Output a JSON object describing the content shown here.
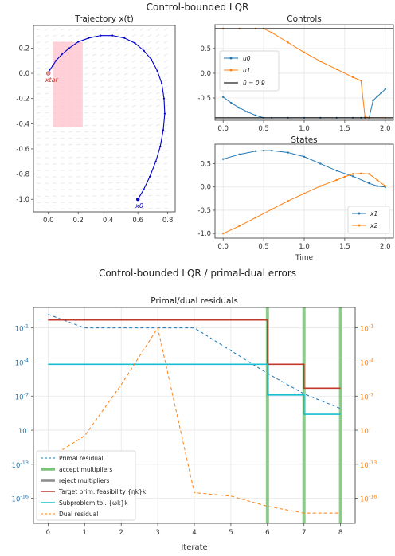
{
  "figure1": {
    "suptitle": "Control-bounded LQR",
    "traj": {
      "title": "Trajectory x(t)",
      "xlim": [
        -0.1,
        0.85
      ],
      "ylim": [
        -1.1,
        0.38
      ],
      "xticks": [
        0.0,
        0.2,
        0.4,
        0.6,
        0.8
      ],
      "yticks": [
        0.2,
        0.0,
        -0.2,
        -0.4,
        -0.6,
        -0.8,
        -1.0
      ],
      "x0_label": "x0",
      "xtar_label": "xtar",
      "start": [
        0.6,
        -1.0
      ],
      "target": [
        0.0,
        0.0
      ],
      "rect": {
        "x": [
          0.03,
          0.23
        ],
        "y": [
          -0.43,
          0.25
        ]
      },
      "line_color": "#0000cc"
    },
    "controls": {
      "title": "Controls",
      "xlim": [
        -0.1,
        2.1
      ],
      "ylim": [
        -0.95,
        0.98
      ],
      "xticks": [
        0.0,
        0.5,
        1.0,
        1.5,
        2.0
      ],
      "yticks": [
        0.5,
        0.0,
        -0.5
      ],
      "bound": 0.9,
      "legend": [
        "u0",
        "u1",
        "ū = 0.9"
      ]
    },
    "states": {
      "title": "States",
      "xlabel": "Time",
      "xlim": [
        -0.1,
        2.1
      ],
      "ylim": [
        -1.1,
        0.92
      ],
      "xticks": [
        0.0,
        0.5,
        1.0,
        1.5,
        2.0
      ],
      "yticks": [
        0.5,
        0.0,
        -0.5,
        -1.0
      ],
      "legend": [
        "x1",
        "x2"
      ]
    }
  },
  "figure2": {
    "suptitle": "Control-bounded LQR / primal-dual errors",
    "title": "Primal/dual residuals",
    "xlabel": "Iterate",
    "xticks": [
      0,
      1,
      2,
      3,
      4,
      5,
      6,
      7,
      8
    ],
    "yticks_left": [
      "10-1",
      "10-4",
      "10-7",
      "10-10",
      "10-13",
      "10-16"
    ],
    "yticks_right": [
      "10-1",
      "10-4",
      "10-7",
      "10-10",
      "10-13",
      "10-16"
    ],
    "legend": [
      "Primal residual",
      "accept multipliers",
      "reject multipliers",
      "Target prim. feasibility {ηk}k",
      "Subproblem tol. {ωk}k",
      "Dual residual"
    ]
  },
  "chart_data": [
    {
      "type": "line",
      "title": "Trajectory x(t)",
      "series": [
        {
          "name": "trajectory",
          "x": [
            0.6,
            0.64,
            0.68,
            0.72,
            0.75,
            0.77,
            0.78,
            0.775,
            0.76,
            0.73,
            0.69,
            0.64,
            0.58,
            0.51,
            0.43,
            0.35,
            0.27,
            0.2,
            0.14,
            0.09,
            0.05,
            0.03,
            0.01,
            0.0
          ],
          "y": [
            -1.0,
            -0.92,
            -0.82,
            -0.7,
            -0.58,
            -0.45,
            -0.32,
            -0.2,
            -0.08,
            0.02,
            0.11,
            0.18,
            0.24,
            0.28,
            0.3,
            0.3,
            0.28,
            0.25,
            0.2,
            0.15,
            0.1,
            0.06,
            0.03,
            0.0
          ]
        }
      ]
    },
    {
      "type": "line",
      "title": "Controls",
      "series": [
        {
          "name": "u0",
          "x": [
            0.0,
            0.1,
            0.2,
            0.3,
            0.4,
            0.5,
            0.6,
            0.8,
            1.0,
            1.2,
            1.4,
            1.6,
            1.7,
            1.75,
            1.8,
            1.85,
            1.9,
            1.95,
            2.0
          ],
          "y": [
            -0.48,
            -0.6,
            -0.7,
            -0.78,
            -0.85,
            -0.9,
            -0.9,
            -0.9,
            -0.9,
            -0.9,
            -0.9,
            -0.9,
            -0.9,
            -0.9,
            -0.9,
            -0.55,
            -0.47,
            -0.4,
            -0.32
          ]
        },
        {
          "name": "u1",
          "x": [
            0.0,
            0.2,
            0.4,
            0.5,
            0.6,
            0.8,
            1.0,
            1.2,
            1.4,
            1.6,
            1.7,
            1.75,
            1.8,
            2.0
          ],
          "y": [
            0.9,
            0.9,
            0.9,
            0.9,
            0.82,
            0.62,
            0.42,
            0.24,
            0.08,
            -0.08,
            -0.15,
            -0.88,
            -0.9,
            -0.9
          ]
        },
        {
          "name": "ū = 0.9",
          "x": [
            -0.1,
            2.1
          ],
          "y": [
            0.9,
            0.9
          ]
        },
        {
          "name": "-ū",
          "x": [
            -0.1,
            2.1
          ],
          "y": [
            -0.9,
            -0.9
          ]
        }
      ]
    },
    {
      "type": "line",
      "title": "States",
      "xlabel": "Time",
      "series": [
        {
          "name": "x1",
          "x": [
            0.0,
            0.2,
            0.4,
            0.5,
            0.6,
            0.8,
            1.0,
            1.2,
            1.4,
            1.6,
            1.8,
            1.9,
            2.0
          ],
          "y": [
            0.6,
            0.7,
            0.77,
            0.78,
            0.78,
            0.74,
            0.65,
            0.5,
            0.35,
            0.23,
            0.08,
            0.02,
            0.0
          ]
        },
        {
          "name": "x2",
          "x": [
            0.0,
            0.2,
            0.4,
            0.6,
            0.8,
            1.0,
            1.2,
            1.4,
            1.5,
            1.6,
            1.7,
            1.8,
            1.9,
            2.0
          ],
          "y": [
            -1.0,
            -0.84,
            -0.66,
            -0.48,
            -0.3,
            -0.14,
            0.02,
            0.15,
            0.22,
            0.28,
            0.29,
            0.28,
            0.15,
            0.02
          ]
        }
      ]
    },
    {
      "type": "line",
      "title": "Primal/dual residuals",
      "xlabel": "Iterate",
      "log_y": true,
      "ylim_log10": [
        -18.2,
        0.8
      ],
      "series": [
        {
          "name": "Primal residual",
          "axis": "left",
          "x": [
            0,
            1,
            2,
            3,
            4,
            5,
            6,
            7,
            8
          ],
          "y_log10": [
            0.2,
            -1.0,
            -1.0,
            -1.0,
            -1.0,
            -3.0,
            -5.0,
            -6.8,
            -8.1
          ]
        },
        {
          "name": "Target prim. feasibility {ηk}k",
          "axis": "left",
          "step": true,
          "x": [
            0,
            6,
            6,
            7,
            7,
            8
          ],
          "y_log10": [
            -0.3,
            -0.3,
            -4.2,
            -4.2,
            -6.3,
            -6.3
          ]
        },
        {
          "name": "Subproblem tol. {ωk}k",
          "axis": "left",
          "step": true,
          "x": [
            0,
            6,
            6,
            7,
            7,
            8
          ],
          "y_log10": [
            -4.2,
            -4.2,
            -6.9,
            -6.9,
            -8.6,
            -8.6
          ]
        },
        {
          "name": "Dual residual",
          "axis": "right",
          "x": [
            0,
            1,
            2,
            3,
            4,
            5,
            6,
            7,
            8
          ],
          "y_log10": [
            -12.5,
            -10.5,
            -6.0,
            -1.0,
            -15.5,
            -15.8,
            -16.7,
            -17.3,
            -17.3
          ]
        },
        {
          "name": "accept multipliers",
          "vlines": [
            6,
            7,
            8
          ]
        }
      ]
    }
  ],
  "colors": {
    "blue": "#1f77b4",
    "orange": "#ff7f0e",
    "red": "#c0392b",
    "cyan": "#17becf",
    "green": "#7cc27c",
    "gray": "#8c8c8c",
    "traj": "#0000cc",
    "rect": "#ffc0cb"
  }
}
